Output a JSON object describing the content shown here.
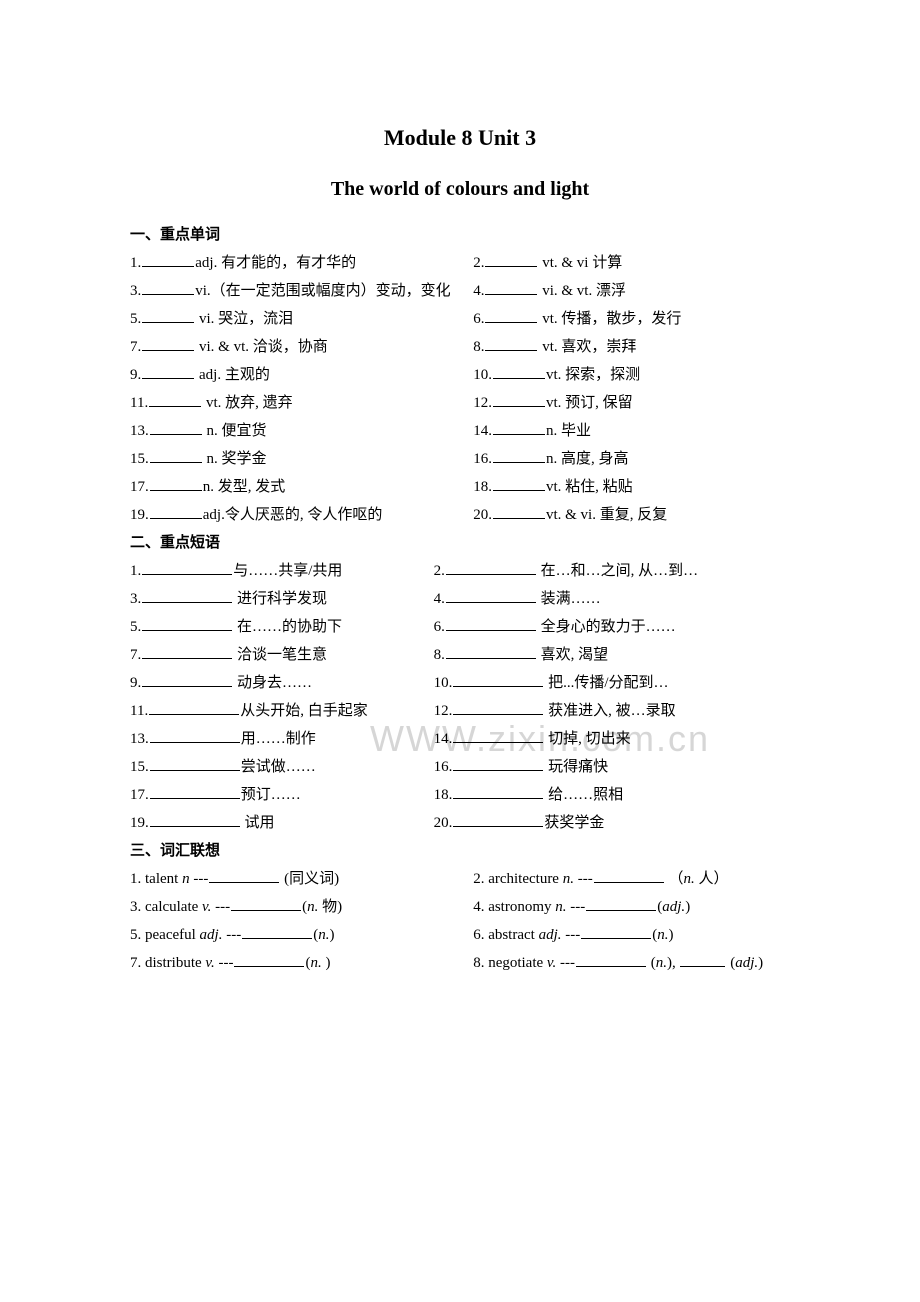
{
  "background_color": "#ffffff",
  "text_color": "#000000",
  "title_main": "Module 8     Unit 3",
  "title_sub": "The world of colours and light",
  "watermark_text": "WWW.zixin.com.cn",
  "watermark_color": "rgba(180,180,180,0.55)",
  "section1": {
    "heading": "一、重点单词",
    "items": [
      {
        "num": "1.",
        "text": "adj. 有才能的，有才华的"
      },
      {
        "num": "2.",
        "text": " vt. & vi 计算"
      },
      {
        "num": "3.",
        "text": "vi.（在一定范围或幅度内）变动，变化"
      },
      {
        "num": "4.",
        "text": " vi. & vt. 漂浮"
      },
      {
        "num": "5.",
        "text": " vi. 哭泣，流泪"
      },
      {
        "num": "6.",
        "text": " vt. 传播，散步，发行"
      },
      {
        "num": "7.",
        "text": " vi. & vt. 洽谈，协商"
      },
      {
        "num": "8.",
        "text": " vt. 喜欢，崇拜"
      },
      {
        "num": "9.",
        "text": " adj. 主观的"
      },
      {
        "num": "10.",
        "text": "vt. 探索，探测"
      },
      {
        "num": "11.",
        "text": " vt. 放弃, 遗弃"
      },
      {
        "num": "12.",
        "text": "vt. 预订, 保留"
      },
      {
        "num": "13.",
        "text": " n. 便宜货"
      },
      {
        "num": "14.",
        "text": "n. 毕业"
      },
      {
        "num": "15.",
        "text": " n. 奖学金"
      },
      {
        "num": "16.",
        "text": "n. 高度, 身高"
      },
      {
        "num": "17.",
        "text": "n. 发型, 发式"
      },
      {
        "num": "18.",
        "text": "vt. 粘住, 粘贴"
      },
      {
        "num": "19.",
        "text": "adj.令人厌恶的, 令人作呕的"
      },
      {
        "num": "20.",
        "text": "vt. & vi. 重复, 反复"
      }
    ]
  },
  "section2": {
    "heading": "二、重点短语",
    "items": [
      {
        "num": "1.",
        "text": "与……共享/共用"
      },
      {
        "num": "2.",
        "text": " 在…和…之间, 从…到…"
      },
      {
        "num": "3.",
        "text": " 进行科学发现"
      },
      {
        "num": "4.",
        "text": " 装满……"
      },
      {
        "num": "5.",
        "text": " 在……的协助下"
      },
      {
        "num": "6.",
        "text": " 全身心的致力于……"
      },
      {
        "num": "7.",
        "text": " 洽谈一笔生意"
      },
      {
        "num": "8.",
        "text": " 喜欢, 渴望"
      },
      {
        "num": "9.",
        "text": " 动身去……"
      },
      {
        "num": "10.",
        "text": " 把...传播/分配到…"
      },
      {
        "num": "11.",
        "text": "从头开始, 白手起家"
      },
      {
        "num": "12.",
        "text": " 获准进入, 被…录取"
      },
      {
        "num": "13.",
        "text": "用……制作"
      },
      {
        "num": "14.",
        "text": " 切掉, 切出来"
      },
      {
        "num": "15.",
        "text": "尝试做……"
      },
      {
        "num": "16.",
        "text": " 玩得痛快"
      },
      {
        "num": "17.",
        "text": "预订……"
      },
      {
        "num": "18.",
        "text": " 给……照相"
      },
      {
        "num": "19.",
        "text": " 试用"
      },
      {
        "num": "20.",
        "text": "获奖学金"
      }
    ]
  },
  "section3": {
    "heading": "三、词汇联想",
    "rows": [
      {
        "l": {
          "num": "1.",
          "before": " talent   ",
          "pos_before": "n",
          "mid": " ---",
          "after": " (同义词)"
        },
        "r": {
          "num": "2.",
          "before": " architecture   ",
          "pos_before": "n.",
          "mid": " ---",
          "after": " （",
          "pos": "n.",
          "after2": " 人）"
        }
      },
      {
        "l": {
          "num": "3.",
          "before": " calculate   ",
          "pos_before": "v.",
          "mid": " ---",
          "after": "(",
          "pos": "n.",
          "after2": " 物)"
        },
        "r": {
          "num": "4.",
          "before": " astronomy   ",
          "pos_before": "n.",
          "mid": " ---",
          "after": "(",
          "pos": "adj.",
          "after2": ")"
        }
      },
      {
        "l": {
          "num": "5.",
          "before": " peaceful   ",
          "pos_before": "adj.",
          "mid": " ---",
          "after": "(",
          "pos": "n.",
          "after2": ")"
        },
        "r": {
          "num": "6.",
          "before": " abstract   ",
          "pos_before": "adj.",
          "mid": " ---",
          "after": "(",
          "pos": "n.",
          "after2": ")"
        }
      },
      {
        "l": {
          "num": "7.",
          "before": " distribute   ",
          "pos_before": "v.",
          "mid": " ---",
          "after": "(",
          "pos": "n.",
          "after2": " )"
        },
        "r": {
          "num": "8.",
          "before": " negotiate   ",
          "pos_before": "v.",
          "mid": " ---",
          "after": " (",
          "pos": "n.",
          "after2": "), ",
          "blank2": true,
          "after3": " (",
          "pos2": "adj.",
          "after4": ")"
        }
      }
    ]
  }
}
